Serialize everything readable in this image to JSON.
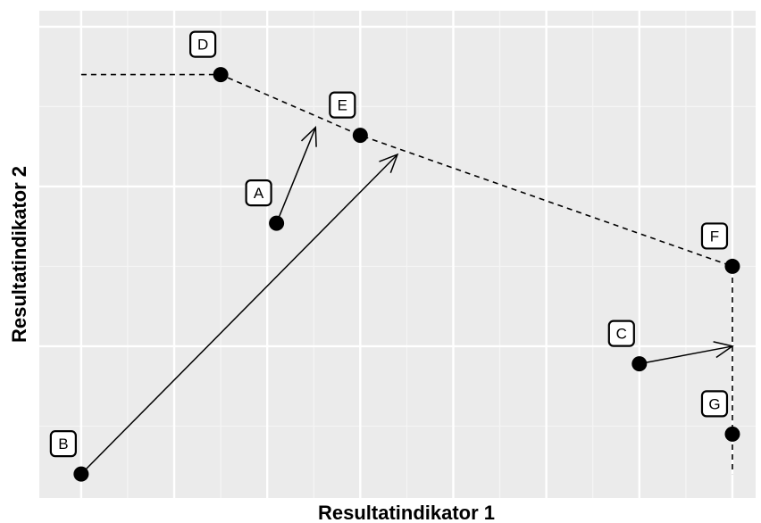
{
  "chart_data": {
    "type": "scatter",
    "title": "",
    "xlabel": "Resultatindikator 1",
    "ylabel": "Resultatindikator 2",
    "xlim": [
      0.55,
      8.25
    ],
    "ylim": [
      0.05,
      3.1
    ],
    "grid": true,
    "points": [
      {
        "label": "A",
        "x": 3.1,
        "y": 1.77
      },
      {
        "label": "B",
        "x": 1.0,
        "y": 0.2
      },
      {
        "label": "C",
        "x": 7.0,
        "y": 0.89
      },
      {
        "label": "D",
        "x": 2.5,
        "y": 2.7
      },
      {
        "label": "E",
        "x": 4.0,
        "y": 2.32
      },
      {
        "label": "F",
        "x": 8.0,
        "y": 1.5
      },
      {
        "label": "G",
        "x": 8.0,
        "y": 0.45
      }
    ],
    "frontier": [
      {
        "x": 1.0,
        "y": 2.7
      },
      {
        "x": 2.5,
        "y": 2.7
      },
      {
        "x": 4.0,
        "y": 2.32
      },
      {
        "x": 8.0,
        "y": 1.5
      },
      {
        "x": 8.0,
        "y": 0.2
      }
    ],
    "projections": [
      {
        "from": "A",
        "to": {
          "x": 3.52,
          "y": 2.37
        }
      },
      {
        "from": "B",
        "to": {
          "x": 4.4,
          "y": 2.2
        }
      },
      {
        "from": "C",
        "to": {
          "x": 8.0,
          "y": 1.0
        }
      }
    ],
    "colors": {
      "panel": "#ebebeb",
      "grid_major": "#ffffff",
      "grid_minor": "#f5f5f5",
      "points": "#000000",
      "lines": "#000000"
    }
  }
}
